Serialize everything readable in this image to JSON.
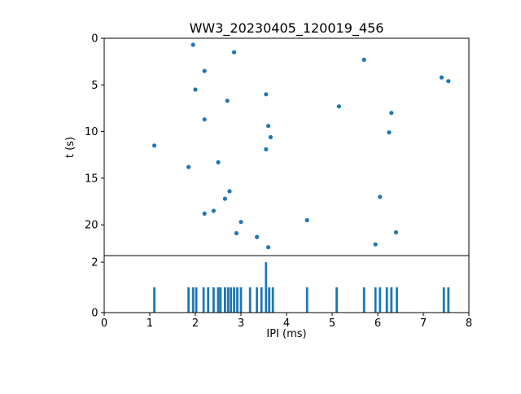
{
  "accent_color": "#1f77b4",
  "axis_color": "#000000",
  "chart_data": [
    {
      "type": "scatter",
      "title": "WW3_20230405_120019_456",
      "xlabel": "",
      "ylabel": "t (s)",
      "xlim": [
        0,
        8
      ],
      "ylim": [
        0,
        23.3
      ],
      "y_inverted": true,
      "grid": false,
      "yticks": [
        0,
        5,
        10,
        15,
        20
      ],
      "points": [
        [
          1.95,
          0.7
        ],
        [
          2.85,
          1.5
        ],
        [
          2.2,
          3.5
        ],
        [
          5.7,
          2.3
        ],
        [
          7.4,
          4.2
        ],
        [
          7.55,
          4.6
        ],
        [
          2.0,
          5.5
        ],
        [
          3.55,
          6.0
        ],
        [
          2.7,
          6.7
        ],
        [
          5.15,
          7.3
        ],
        [
          6.3,
          8.0
        ],
        [
          2.2,
          8.7
        ],
        [
          3.6,
          9.4
        ],
        [
          6.25,
          10.1
        ],
        [
          3.65,
          10.6
        ],
        [
          3.55,
          11.9
        ],
        [
          1.1,
          11.5
        ],
        [
          1.85,
          13.8
        ],
        [
          2.5,
          13.3
        ],
        [
          2.75,
          16.4
        ],
        [
          2.65,
          17.2
        ],
        [
          6.05,
          17.0
        ],
        [
          2.2,
          18.8
        ],
        [
          2.4,
          18.5
        ],
        [
          4.45,
          19.5
        ],
        [
          3.0,
          19.7
        ],
        [
          2.9,
          20.9
        ],
        [
          6.4,
          20.8
        ],
        [
          3.35,
          21.3
        ],
        [
          5.95,
          22.1
        ],
        [
          3.6,
          22.4
        ]
      ]
    },
    {
      "type": "bar",
      "title": "",
      "xlabel": "IPI (ms)",
      "ylabel": "",
      "xlim": [
        0,
        8
      ],
      "ylim": [
        0,
        2.26
      ],
      "grid": false,
      "yticks": [
        0,
        2
      ],
      "xticks": [
        0,
        1,
        2,
        3,
        4,
        5,
        6,
        7,
        8
      ],
      "x": [
        1.1,
        1.85,
        1.95,
        2.02,
        2.18,
        2.28,
        2.4,
        2.5,
        2.55,
        2.65,
        2.72,
        2.78,
        2.85,
        2.92,
        3.0,
        3.2,
        3.35,
        3.45,
        3.55,
        3.62,
        3.7,
        4.45,
        5.1,
        5.7,
        5.95,
        6.05,
        6.2,
        6.3,
        6.42,
        7.45,
        7.55
      ],
      "heights": [
        1,
        1,
        1,
        1,
        1,
        1,
        1,
        1,
        1,
        1,
        1,
        1,
        1,
        1,
        1,
        1,
        1,
        1,
        2,
        1,
        1,
        1,
        1,
        1,
        1,
        1,
        1,
        1,
        1,
        1,
        1
      ]
    }
  ]
}
